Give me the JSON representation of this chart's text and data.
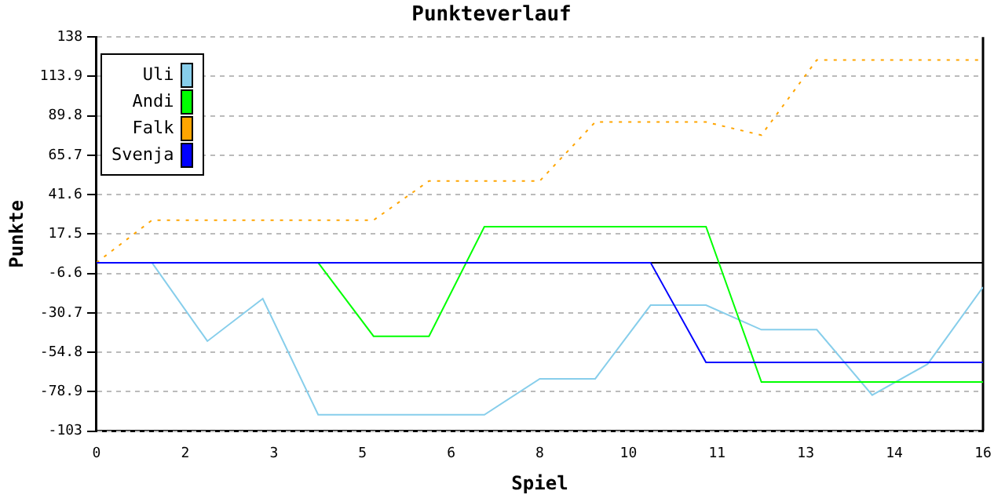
{
  "chart_data": {
    "type": "line",
    "title": "Punkteverlauf",
    "xlabel": "Spiel",
    "ylabel": "Punkte",
    "x": [
      0,
      1,
      2,
      3,
      4,
      5,
      6,
      7,
      8,
      9,
      10,
      11,
      12,
      13,
      14,
      15,
      16
    ],
    "series": [
      {
        "name": "Uli",
        "color": "#87ceeb",
        "values": [
          null,
          0,
          -48,
          -22,
          -93,
          -93,
          -93,
          -93,
          -71,
          -71,
          -26,
          -26,
          -41,
          -41,
          -81,
          -62,
          -15
        ]
      },
      {
        "name": "Andi",
        "color": "#00ff00",
        "values": [
          null,
          null,
          null,
          null,
          0,
          -45,
          -45,
          22,
          22,
          22,
          22,
          22,
          -73,
          -73,
          -73,
          -73,
          -73
        ]
      },
      {
        "name": "Falk",
        "color": "#ffa500",
        "line_style": "dotted",
        "values": [
          0,
          26,
          26,
          26,
          26,
          26,
          50,
          50,
          50,
          86,
          86,
          86,
          78,
          124,
          124,
          124,
          124
        ]
      },
      {
        "name": "Svenja",
        "color": "#0000ff",
        "values": [
          0,
          0,
          0,
          0,
          0,
          0,
          0,
          0,
          0,
          0,
          0,
          -61,
          -61,
          -61,
          -61,
          -61,
          -61
        ]
      }
    ],
    "xlim": [
      0,
      16
    ],
    "xticks": [
      0,
      {
        "value": 1.6,
        "label": "2"
      },
      {
        "value": 3.2,
        "label": "3"
      },
      {
        "value": 4.8,
        "label": "5"
      },
      {
        "value": 6.4,
        "label": "6"
      },
      8,
      {
        "value": 9.6,
        "label": "10"
      },
      {
        "value": 11.2,
        "label": "11"
      },
      {
        "value": 12.8,
        "label": "13"
      },
      {
        "value": 14.4,
        "label": "14"
      },
      16
    ],
    "ylim": [
      -103,
      138
    ],
    "yticks": [
      -103,
      -78.9,
      -54.8,
      -30.7,
      -6.6,
      17.5,
      41.6,
      65.7,
      89.8,
      113.9,
      138
    ],
    "ref_lines": [
      {
        "axis": "y",
        "value": 0,
        "color": "#000000"
      }
    ],
    "grid": "y",
    "legend": "top left",
    "marker": "none",
    "line_style": "solid"
  }
}
